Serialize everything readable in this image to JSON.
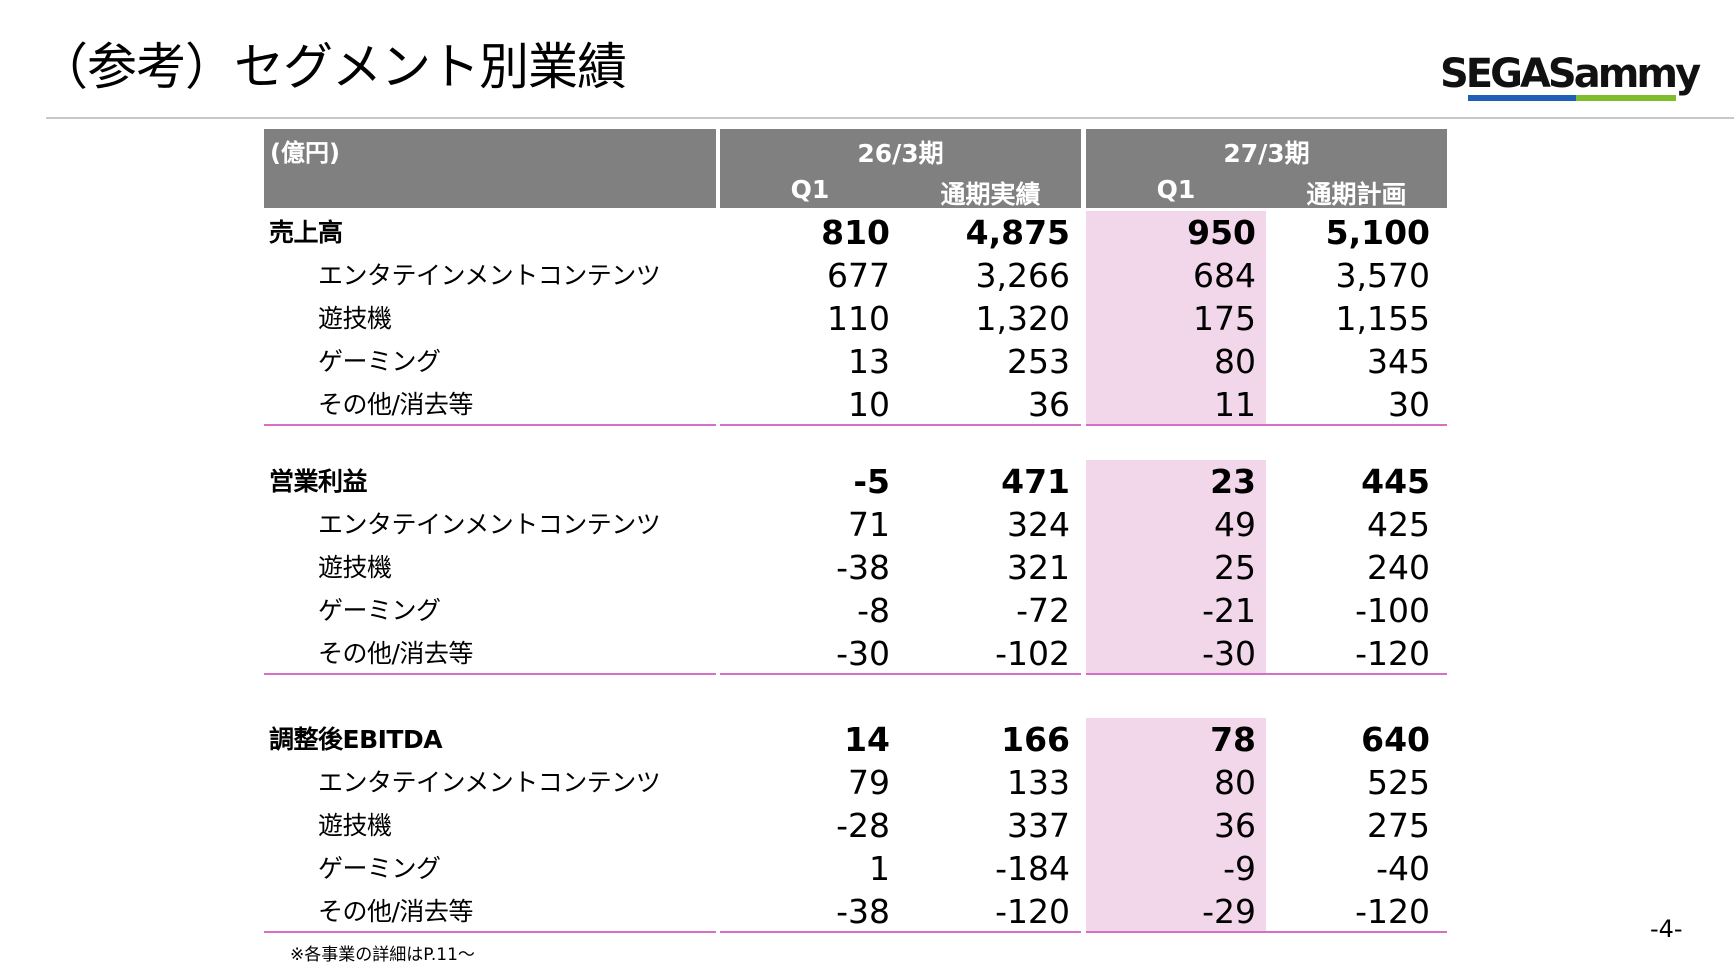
{
  "title": "（参考）セグメント別業績",
  "logo_text": "SEGASammy",
  "colors": {
    "header_bg": "#808080",
    "highlight_bg": "#f2d7ea",
    "rule_magenta": "#d86fc6",
    "logo_blue": "#1f5fb5",
    "logo_green": "#7ebd2c"
  },
  "table": {
    "unit": "(億円)",
    "periods": [
      {
        "label": "26/3期",
        "cols": [
          "Q1",
          "通期実績"
        ]
      },
      {
        "label": "27/3期",
        "cols": [
          "Q1",
          "通期計画"
        ]
      }
    ],
    "sections": [
      {
        "label": "売上高",
        "values": [
          "810",
          "4,875",
          "950",
          "5,100"
        ],
        "rows": [
          {
            "label": "エンタテインメントコンテンツ",
            "values": [
              "677",
              "3,266",
              "684",
              "3,570"
            ]
          },
          {
            "label": "遊技機",
            "values": [
              "110",
              "1,320",
              "175",
              "1,155"
            ]
          },
          {
            "label": "ゲーミング",
            "values": [
              "13",
              "253",
              "80",
              "345"
            ]
          },
          {
            "label": "その他/消去等",
            "values": [
              "10",
              "36",
              "11",
              "30"
            ]
          }
        ]
      },
      {
        "label": "営業利益",
        "values": [
          "-5",
          "471",
          "23",
          "445"
        ],
        "rows": [
          {
            "label": "エンタテインメントコンテンツ",
            "values": [
              "71",
              "324",
              "49",
              "425"
            ]
          },
          {
            "label": "遊技機",
            "values": [
              "-38",
              "321",
              "25",
              "240"
            ]
          },
          {
            "label": "ゲーミング",
            "values": [
              "-8",
              "-72",
              "-21",
              "-100"
            ]
          },
          {
            "label": "その他/消去等",
            "values": [
              "-30",
              "-102",
              "-30",
              "-120"
            ]
          }
        ]
      },
      {
        "label": "調整後EBITDA",
        "values": [
          "14",
          "166",
          "78",
          "640"
        ],
        "rows": [
          {
            "label": "エンタテインメントコンテンツ",
            "values": [
              "79",
              "133",
              "80",
              "525"
            ]
          },
          {
            "label": "遊技機",
            "values": [
              "-28",
              "337",
              "36",
              "275"
            ]
          },
          {
            "label": "ゲーミング",
            "values": [
              "1",
              "-184",
              "-9",
              "-40"
            ]
          },
          {
            "label": "その他/消去等",
            "values": [
              "-38",
              "-120",
              "-29",
              "-120"
            ]
          }
        ]
      }
    ]
  },
  "footnote": "※各事業の詳細はP.11～",
  "page_number": "-4-"
}
